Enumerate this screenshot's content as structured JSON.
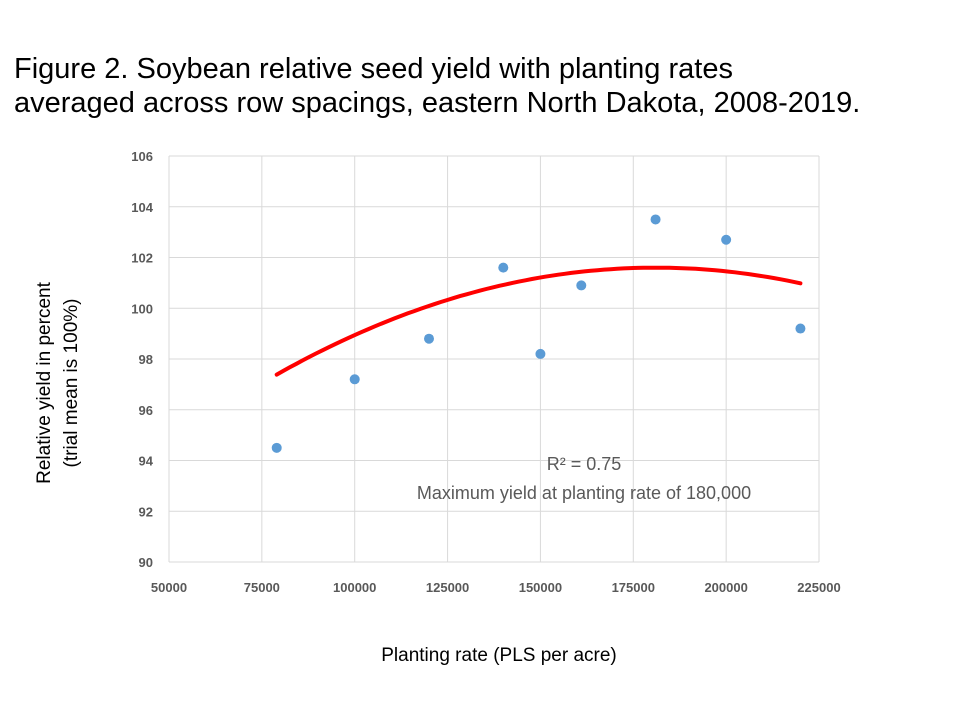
{
  "title": {
    "line1": "Figure 2. Soybean relative seed yield with planting rates",
    "line2": "averaged across row spacings, eastern North Dakota, 2008-2019."
  },
  "chart_data": {
    "type": "scatter",
    "xlabel": "Planting rate (PLS per acre)",
    "ylabel_line1": "Relative yield in percent",
    "ylabel_line2": "(trial mean is 100%)",
    "xlim": [
      50000,
      225000
    ],
    "ylim": [
      90,
      106
    ],
    "x_ticks": [
      50000,
      75000,
      100000,
      125000,
      150000,
      175000,
      200000,
      225000
    ],
    "y_ticks": [
      90,
      92,
      94,
      96,
      98,
      100,
      102,
      104,
      106
    ],
    "grid": true,
    "points": [
      {
        "x": 79000,
        "y": 94.5
      },
      {
        "x": 100000,
        "y": 97.2
      },
      {
        "x": 120000,
        "y": 98.8
      },
      {
        "x": 140000,
        "y": 101.6
      },
      {
        "x": 150000,
        "y": 98.2
      },
      {
        "x": 161000,
        "y": 100.9
      },
      {
        "x": 181000,
        "y": 103.5
      },
      {
        "x": 200000,
        "y": 102.7
      },
      {
        "x": 220000,
        "y": 99.2
      }
    ],
    "trendline": {
      "type": "polynomial",
      "x_range": [
        79000,
        220000
      ],
      "quadratic_fit": {
        "peak_x": 181000,
        "peak_y": 101.6,
        "a": -4.05e-10
      }
    },
    "annotations": {
      "r_squared": "R² = 0.75",
      "max_yield": "Maximum yield at planting rate of 180,000"
    },
    "colors": {
      "points": "#5b9bd5",
      "trendline": "#ff0000",
      "grid": "#d9d9d9",
      "tick_text": "#595959"
    }
  }
}
